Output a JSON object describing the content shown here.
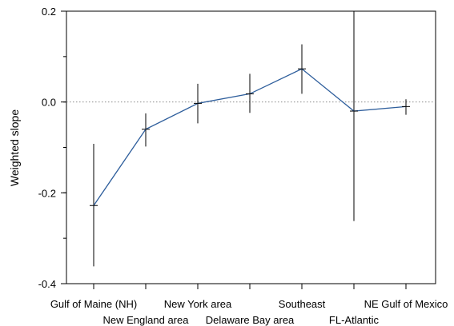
{
  "chart_data": {
    "type": "line",
    "title": "",
    "xlabel": "",
    "ylabel": "Weighted slope",
    "ylim": [
      -0.4,
      0.2
    ],
    "yticks": [
      0.2,
      0.0,
      -0.2,
      -0.4
    ],
    "ytick_labels": [
      "0.2",
      "0.0",
      "-0.2",
      "-0.4"
    ],
    "minor_ytick_step": 0.1,
    "reference_line": {
      "y": 0.0,
      "style": "dotted"
    },
    "categories": [
      "Gulf of Maine (NH)",
      "New England area",
      "New York area",
      "Delaware Bay area",
      "Southeast",
      "FL-Atlantic",
      "NE Gulf of Mexico"
    ],
    "series": [
      {
        "values": [
          -0.228,
          -0.06,
          -0.003,
          0.018,
          0.073,
          -0.02,
          -0.01
        ],
        "error_low": [
          -0.362,
          -0.098,
          -0.047,
          -0.024,
          0.018,
          -0.262,
          -0.028
        ],
        "error_high": [
          -0.092,
          -0.025,
          0.04,
          0.062,
          0.127,
          0.2,
          0.006
        ]
      }
    ],
    "colors": {
      "line": "#2e5e9c",
      "error_bars": "#000000",
      "axes": "#000000",
      "reference": "#888888"
    },
    "grid": false,
    "legend": "none"
  }
}
